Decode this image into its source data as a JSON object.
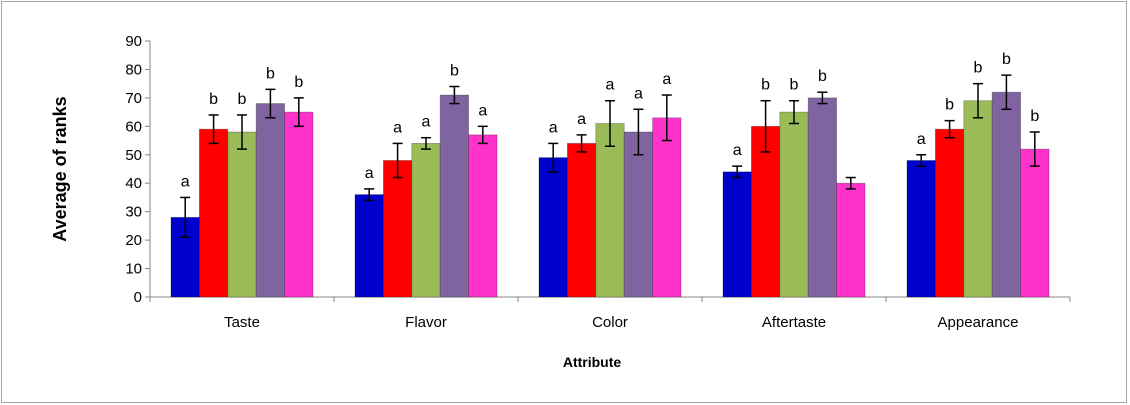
{
  "chart_data": {
    "type": "bar",
    "title": "",
    "xlabel": "Attribute",
    "ylabel": "Average of ranks",
    "ylim": [
      0,
      90
    ],
    "yticks": [
      0,
      10,
      20,
      30,
      40,
      50,
      60,
      70,
      80,
      90
    ],
    "categories": [
      "Taste",
      "Flavor",
      "Color",
      "Aftertaste",
      "Appearance"
    ],
    "grid": false,
    "legend": "none",
    "series": [
      {
        "color": "#0000CC",
        "values": [
          28,
          36,
          49,
          44,
          48
        ],
        "errors": [
          7,
          2,
          5,
          2,
          2
        ],
        "letters": [
          "a",
          "a",
          "a",
          "a",
          "a"
        ]
      },
      {
        "color": "#FF0000",
        "values": [
          59,
          48,
          54,
          60,
          59
        ],
        "errors": [
          5,
          6,
          3,
          9,
          3
        ],
        "letters": [
          "b",
          "a",
          "a",
          "b",
          "b"
        ]
      },
      {
        "color": "#9BBB59",
        "values": [
          58,
          54,
          61,
          65,
          69
        ],
        "errors": [
          6,
          2,
          8,
          4,
          6
        ],
        "letters": [
          "b",
          "a",
          "a",
          "b",
          "b"
        ]
      },
      {
        "color": "#8064A2",
        "values": [
          68,
          71,
          58,
          70,
          72
        ],
        "errors": [
          5,
          3,
          8,
          2,
          6
        ],
        "letters": [
          "b",
          "b",
          "a",
          "b",
          "b"
        ]
      },
      {
        "color": "#FF33CC",
        "values": [
          65,
          57,
          63,
          40,
          52
        ],
        "errors": [
          5,
          3,
          8,
          2,
          6
        ],
        "letters": [
          "b",
          "a",
          "a",
          "",
          "b"
        ]
      }
    ]
  }
}
